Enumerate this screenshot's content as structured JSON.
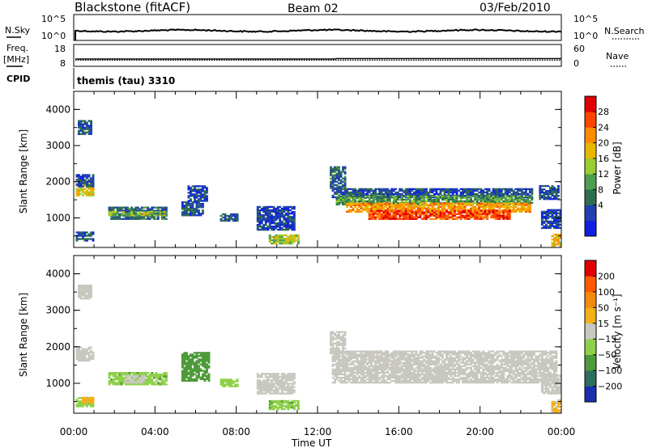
{
  "header": {
    "radar": "Blackstone (fitACF)",
    "beam": "Beam 02",
    "date": "03/Feb/2010"
  },
  "params": {
    "nsky_label": "N.Sky",
    "nsky_ticks": [
      "10^5",
      "10^0"
    ],
    "nsearch_label": "N.Search",
    "nsearch_ticks": [
      "10^5",
      "10^0"
    ],
    "freq_label": "Freq.",
    "freq_unit": "[MHz]",
    "freq_ticks": [
      "18",
      "8"
    ],
    "nave_label": "Nave",
    "nave_ticks": [
      "60",
      "0"
    ],
    "cpid_label": "CPID",
    "cpid_value": "themis (tau) 3310"
  },
  "xaxis": {
    "label": "Time UT",
    "ticks": [
      "00:00",
      "04:00",
      "08:00",
      "12:00",
      "16:00",
      "20:00",
      "00:00"
    ]
  },
  "colors": {
    "power": [
      "#1020e0",
      "#2040b0",
      "#2e6e4e",
      "#4f9e4f",
      "#9acd32",
      "#e8b800",
      "#ff8c00",
      "#ff4500",
      "#e00000"
    ],
    "velocity": [
      "#1a2fb0",
      "#2e6e5e",
      "#4e9a3a",
      "#8fd04a",
      "#c8c8c0",
      "#f2b01a",
      "#f28a10",
      "#ff5a00",
      "#e00000"
    ]
  },
  "chart_data": [
    {
      "type": "heatmap",
      "title": "",
      "xlabel": "",
      "ylabel": "Slant Range [km]",
      "xlim": [
        0,
        24
      ],
      "ylim": [
        180,
        4500
      ],
      "yticks": [
        "4000",
        "3000",
        "2000",
        "1000"
      ],
      "colorbar": {
        "label": "Power [dB]",
        "ticks": [
          "28",
          "24",
          "20",
          "16",
          "12",
          "8",
          "4"
        ],
        "range": [
          0,
          32
        ]
      },
      "regions": [
        {
          "t0": 0.1,
          "t1": 0.9,
          "r0": 1600,
          "r1": 2000,
          "v": 18
        },
        {
          "t0": 0.1,
          "t1": 0.9,
          "r0": 1850,
          "r1": 2200,
          "v": 6
        },
        {
          "t0": 0.2,
          "t1": 0.8,
          "r0": 3300,
          "r1": 3700,
          "v": 6
        },
        {
          "t0": 0.1,
          "t1": 0.9,
          "r0": 350,
          "r1": 600,
          "v": 7
        },
        {
          "t0": 1.7,
          "t1": 4.6,
          "r0": 950,
          "r1": 1300,
          "v": 8
        },
        {
          "t0": 1.7,
          "t1": 4.6,
          "r0": 1050,
          "r1": 1150,
          "v": 15
        },
        {
          "t0": 5.3,
          "t1": 6.3,
          "r0": 1050,
          "r1": 1450,
          "v": 6
        },
        {
          "t0": 5.6,
          "t1": 6.5,
          "r0": 1450,
          "r1": 1900,
          "v": 5
        },
        {
          "t0": 7.2,
          "t1": 8.0,
          "r0": 900,
          "r1": 1100,
          "v": 7
        },
        {
          "t0": 9.0,
          "t1": 10.8,
          "r0": 650,
          "r1": 1300,
          "v": 5
        },
        {
          "t0": 9.6,
          "t1": 11.0,
          "r0": 270,
          "r1": 500,
          "v": 16
        },
        {
          "t0": 12.7,
          "t1": 22.6,
          "r0": 1550,
          "r1": 1800,
          "v": 6
        },
        {
          "t0": 12.9,
          "t1": 22.6,
          "r0": 1350,
          "r1": 1600,
          "v": 12
        },
        {
          "t0": 13.4,
          "t1": 22.5,
          "r0": 1150,
          "r1": 1380,
          "v": 22
        },
        {
          "t0": 14.5,
          "t1": 21.5,
          "r0": 950,
          "r1": 1180,
          "v": 27
        },
        {
          "t0": 12.6,
          "t1": 13.3,
          "r0": 1800,
          "r1": 2400,
          "v": 8
        },
        {
          "t0": 22.9,
          "t1": 23.9,
          "r0": 1500,
          "r1": 1900,
          "v": 6
        },
        {
          "t0": 23.0,
          "t1": 24.0,
          "r0": 700,
          "r1": 1200,
          "v": 5
        },
        {
          "t0": 23.5,
          "t1": 24.0,
          "r0": 200,
          "r1": 550,
          "v": 20
        }
      ]
    },
    {
      "type": "heatmap",
      "title": "",
      "xlabel": "Time UT",
      "ylabel": "Slant Range [km]",
      "xlim": [
        0,
        24
      ],
      "ylim": [
        180,
        4500
      ],
      "yticks": [
        "4000",
        "3000",
        "2000",
        "1000"
      ],
      "colorbar": {
        "label": "Velocity [m s⁻¹]",
        "ticks": [
          "200",
          "100",
          "50",
          "15",
          "−15",
          "−50",
          "−100",
          "−200"
        ],
        "range": [
          -250,
          250
        ]
      },
      "regions": [
        {
          "t0": 0.1,
          "t1": 0.9,
          "r0": 1600,
          "r1": 2000,
          "v": 0
        },
        {
          "t0": 0.2,
          "t1": 0.8,
          "r0": 3300,
          "r1": 3700,
          "v": 0
        },
        {
          "t0": 0.1,
          "t1": 0.9,
          "r0": 350,
          "r1": 600,
          "v": -60
        },
        {
          "t0": 0.4,
          "t1": 0.9,
          "r0": 450,
          "r1": 600,
          "v": 40
        },
        {
          "t0": 1.7,
          "t1": 4.6,
          "r0": 950,
          "r1": 1300,
          "v": -80
        },
        {
          "t0": 2.5,
          "t1": 3.5,
          "r0": 1000,
          "r1": 1200,
          "v": 0
        },
        {
          "t0": 5.3,
          "t1": 6.6,
          "r0": 1050,
          "r1": 1850,
          "v": -90
        },
        {
          "t0": 7.2,
          "t1": 8.0,
          "r0": 900,
          "r1": 1100,
          "v": -70
        },
        {
          "t0": 9.0,
          "t1": 10.8,
          "r0": 700,
          "r1": 1250,
          "v": 0
        },
        {
          "t0": 9.6,
          "t1": 11.0,
          "r0": 270,
          "r1": 500,
          "v": -80
        },
        {
          "t0": 12.7,
          "t1": 23.8,
          "r0": 1000,
          "r1": 1900,
          "v": 0
        },
        {
          "t0": 12.6,
          "t1": 13.3,
          "r0": 1800,
          "r1": 2400,
          "v": 0
        },
        {
          "t0": 23.0,
          "t1": 24.0,
          "r0": 700,
          "r1": 1200,
          "v": 0
        },
        {
          "t0": 23.5,
          "t1": 24.0,
          "r0": 200,
          "r1": 550,
          "v": 30
        }
      ]
    }
  ]
}
